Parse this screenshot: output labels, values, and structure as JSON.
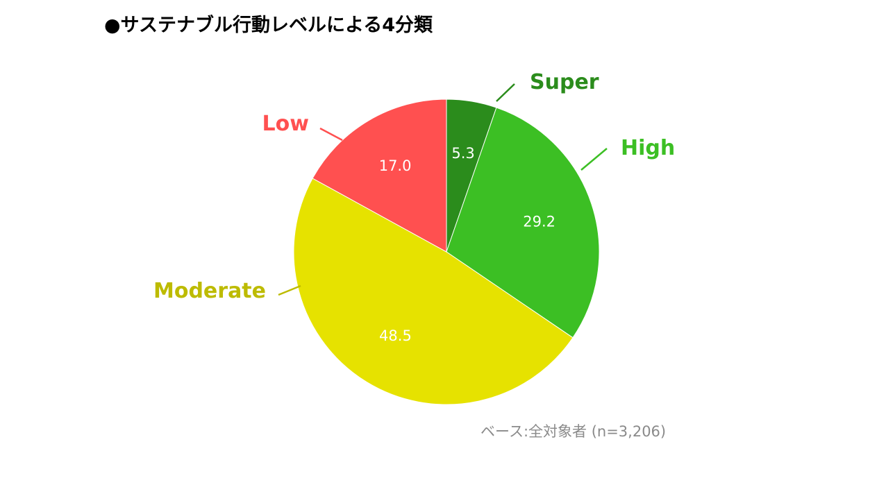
{
  "title": "●サステナブル行動レベルによる4分類",
  "base_note": "ベース:全対象者 (n=3,206)",
  "chart_data": {
    "type": "pie",
    "title": "●サステナブル行動レベルによる4分類",
    "categories": [
      "Super",
      "High",
      "Moderate",
      "Low"
    ],
    "values": [
      5.3,
      29.2,
      48.5,
      17.0
    ],
    "value_labels": [
      "5.3",
      "29.2",
      "48.5",
      "17.0"
    ],
    "colors": [
      "#2b8c1c",
      "#3cbf24",
      "#e6e200",
      "#ff5050"
    ],
    "label_colors": [
      "#2b8c1c",
      "#3cbf24",
      "#bdbb00",
      "#ff5050"
    ],
    "start_angle": "12 o'clock",
    "direction": "clockwise"
  }
}
